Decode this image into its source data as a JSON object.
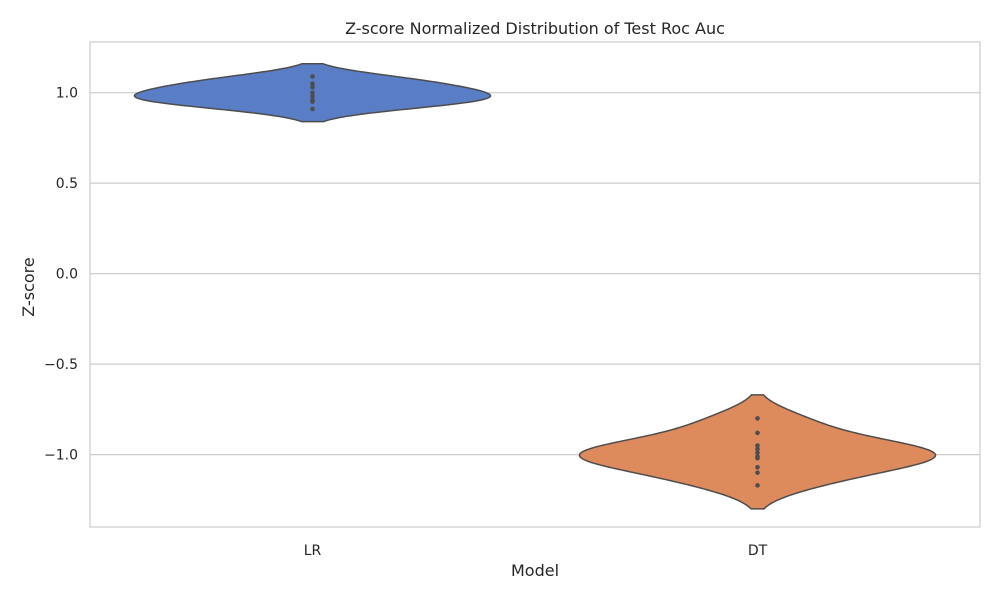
{
  "chart_data": {
    "type": "violin",
    "title": "Z-score Normalized Distribution of Test Roc Auc",
    "xlabel": "Model",
    "ylabel": "Z-score",
    "categories": [
      "LR",
      "DT"
    ],
    "ylim": [
      -1.4,
      1.28
    ],
    "yticks": [
      1.0,
      0.5,
      0.0,
      -0.5,
      -1.0
    ],
    "ytick_labels": [
      "1.0",
      "0.5",
      "0.0",
      "−0.5",
      "−1.0"
    ],
    "grid": "horizontal",
    "series": [
      {
        "category": "LR",
        "color": "#5a7ec6",
        "points": [
          1.09,
          1.05,
          1.03,
          1.0,
          0.98,
          0.96,
          0.95,
          0.91
        ],
        "density_range": [
          0.84,
          1.16
        ]
      },
      {
        "category": "DT",
        "color": "#dd8a5d",
        "points": [
          -0.8,
          -0.88,
          -0.95,
          -0.97,
          -0.99,
          -1.01,
          -1.02,
          -1.07,
          -1.1,
          -1.17
        ],
        "density_range": [
          -1.3,
          -0.67
        ]
      }
    ],
    "edge_color": "#4d4d4d",
    "point_color": "#4d4d4d"
  }
}
